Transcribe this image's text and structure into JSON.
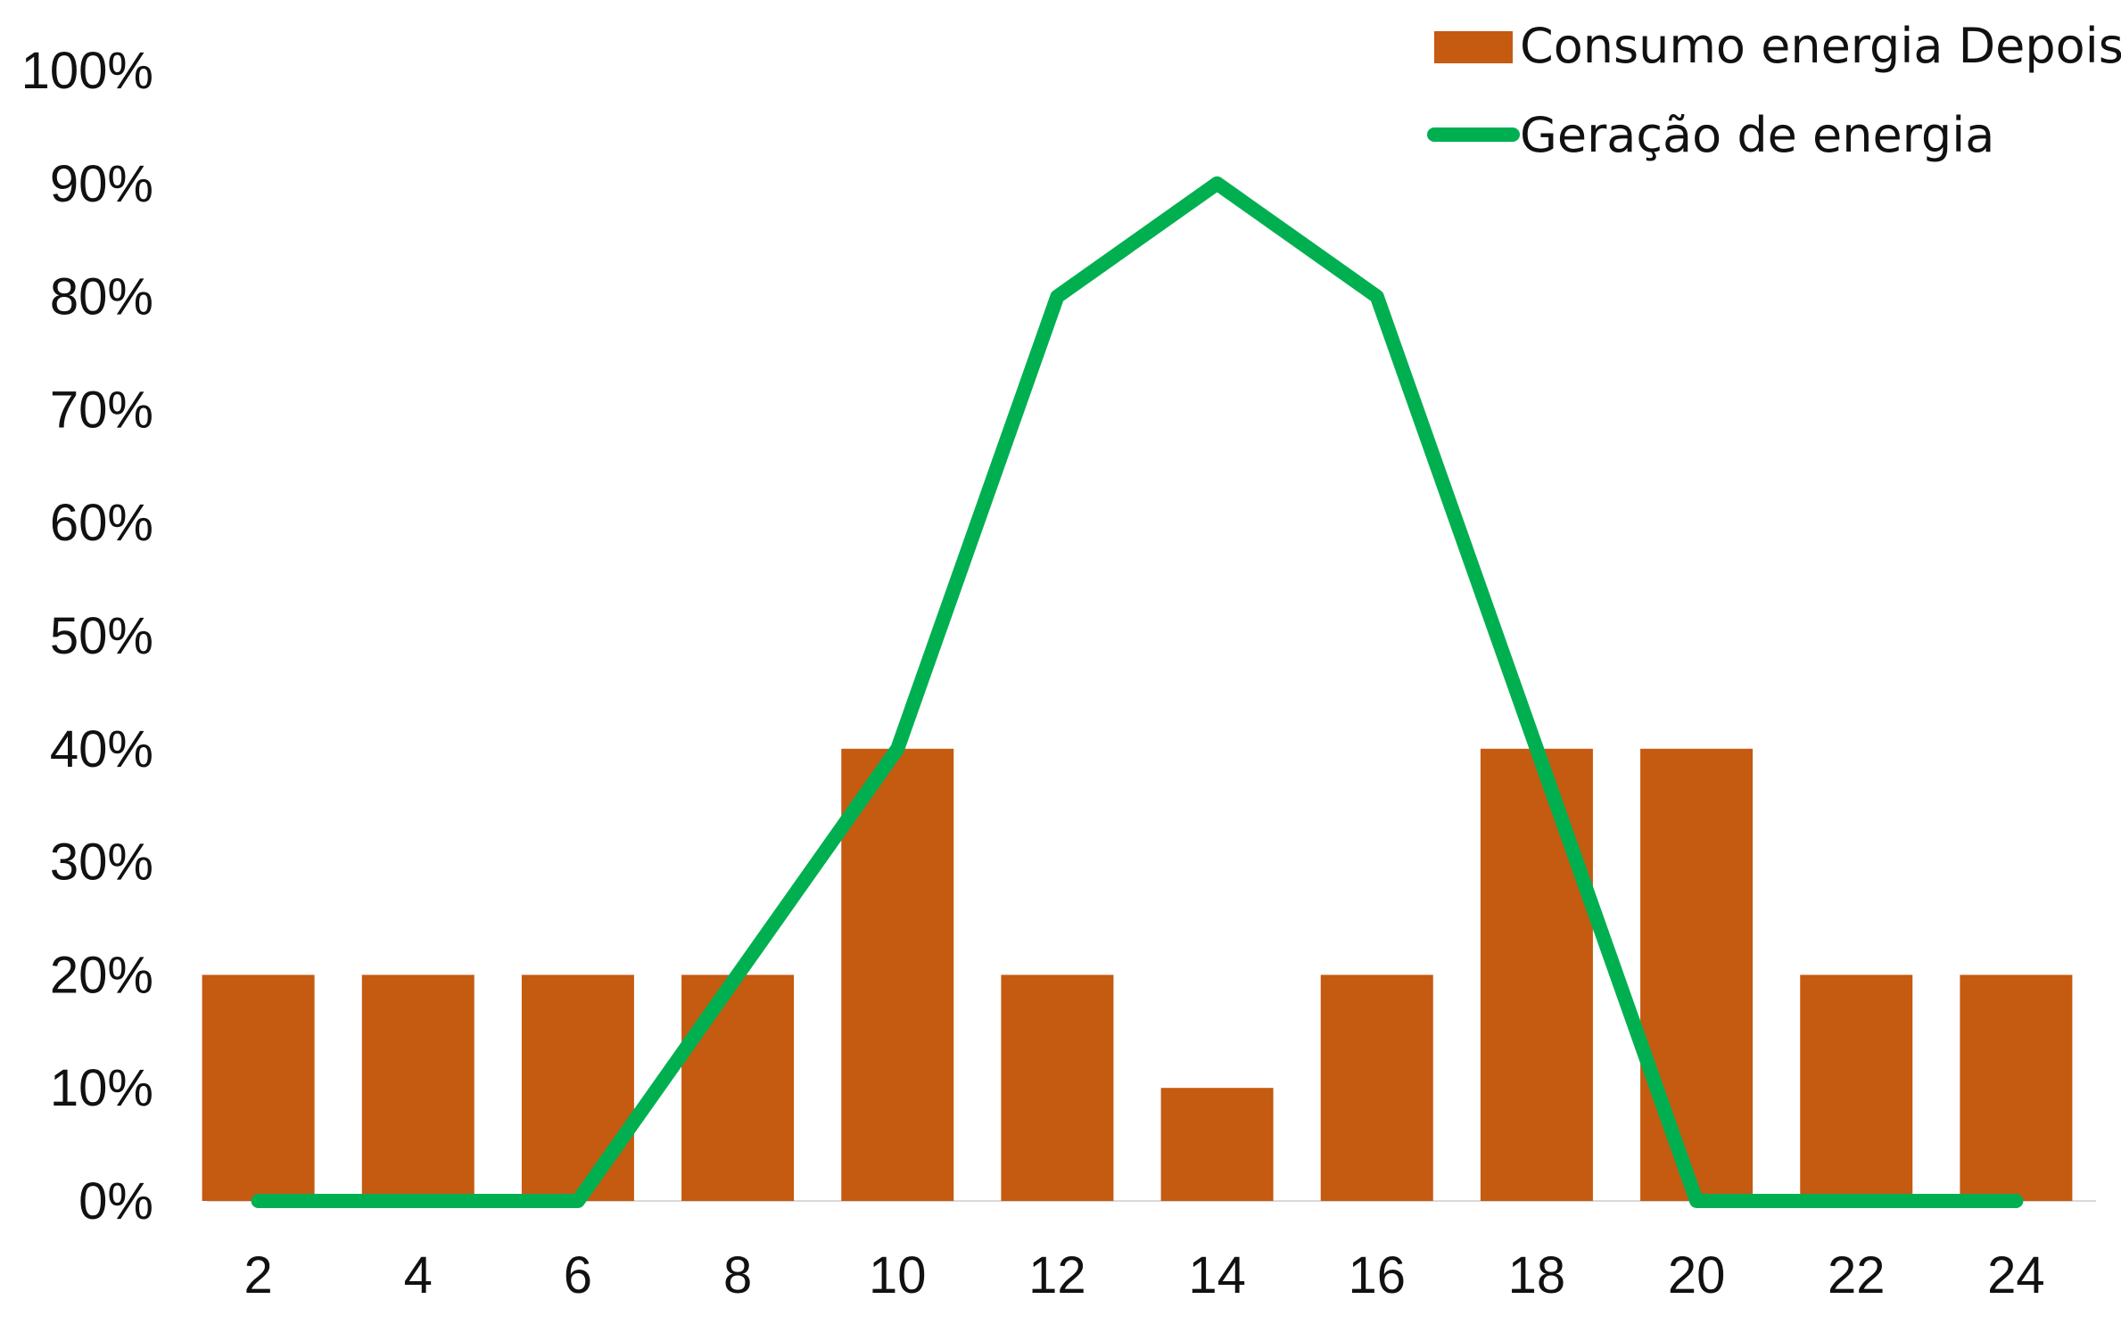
{
  "chart_data": {
    "type": "bar",
    "categories": [
      "2",
      "4",
      "6",
      "8",
      "10",
      "12",
      "14",
      "16",
      "18",
      "20",
      "22",
      "24"
    ],
    "series": [
      {
        "name": "Consumo energia Depois",
        "kind": "bar",
        "color": "#c55a11",
        "values": [
          20,
          20,
          20,
          20,
          40,
          20,
          10,
          20,
          40,
          40,
          20,
          20
        ]
      },
      {
        "name": "Geração de energia",
        "kind": "line",
        "color": "#00b050",
        "values": [
          0,
          0,
          0,
          20,
          40,
          80,
          90,
          80,
          40,
          0,
          0,
          0
        ]
      }
    ],
    "ylim": [
      0,
      100
    ],
    "y_ticks": [
      "0%",
      "10%",
      "20%",
      "30%",
      "40%",
      "50%",
      "60%",
      "70%",
      "80%",
      "90%",
      "100%"
    ],
    "grid": false,
    "legend_position": "top-right",
    "title": "",
    "xlabel": "",
    "ylabel": ""
  }
}
